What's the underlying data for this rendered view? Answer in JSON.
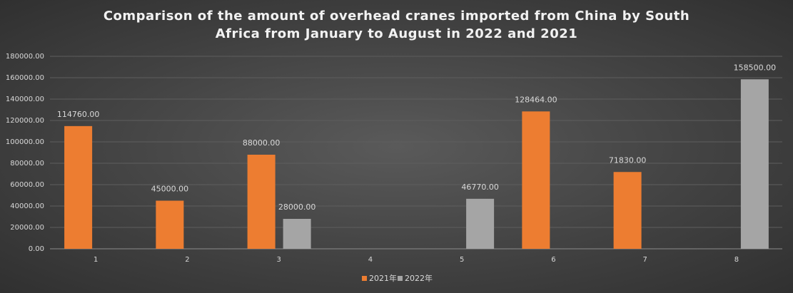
{
  "chart_data": {
    "type": "bar",
    "title": "Comparison of the amount of overhead cranes imported from China by South Africa from January to August in 2022 and 2021",
    "categories": [
      "1",
      "2",
      "3",
      "4",
      "5",
      "6",
      "7",
      "8"
    ],
    "series": [
      {
        "name": "2021年",
        "color": "#ed7d31",
        "values": [
          114760,
          45000,
          88000,
          null,
          null,
          128464,
          71830,
          null
        ],
        "value_labels": [
          "114760.00",
          "45000.00",
          "88000.00",
          null,
          null,
          "128464.00",
          "71830.00",
          null
        ]
      },
      {
        "name": "2022年",
        "color": "#a5a5a5",
        "values": [
          null,
          null,
          28000,
          null,
          46770,
          null,
          null,
          158500
        ],
        "value_labels": [
          null,
          null,
          "28000.00",
          null,
          "46770.00",
          null,
          null,
          "158500.00"
        ]
      }
    ],
    "ylim": [
      0,
      180000
    ],
    "yticks": [
      {
        "value": 0,
        "label": "0.00"
      },
      {
        "value": 20000,
        "label": "20000.00"
      },
      {
        "value": 40000,
        "label": "40000.00"
      },
      {
        "value": 60000,
        "label": "60000.00"
      },
      {
        "value": 80000,
        "label": "80000.00"
      },
      {
        "value": 100000,
        "label": "100000.00"
      },
      {
        "value": 120000,
        "label": "120000.00"
      },
      {
        "value": 140000,
        "label": "140000.00"
      },
      {
        "value": 160000,
        "label": "160000.00"
      },
      {
        "value": 180000,
        "label": "180000.00"
      }
    ],
    "grid": true
  }
}
